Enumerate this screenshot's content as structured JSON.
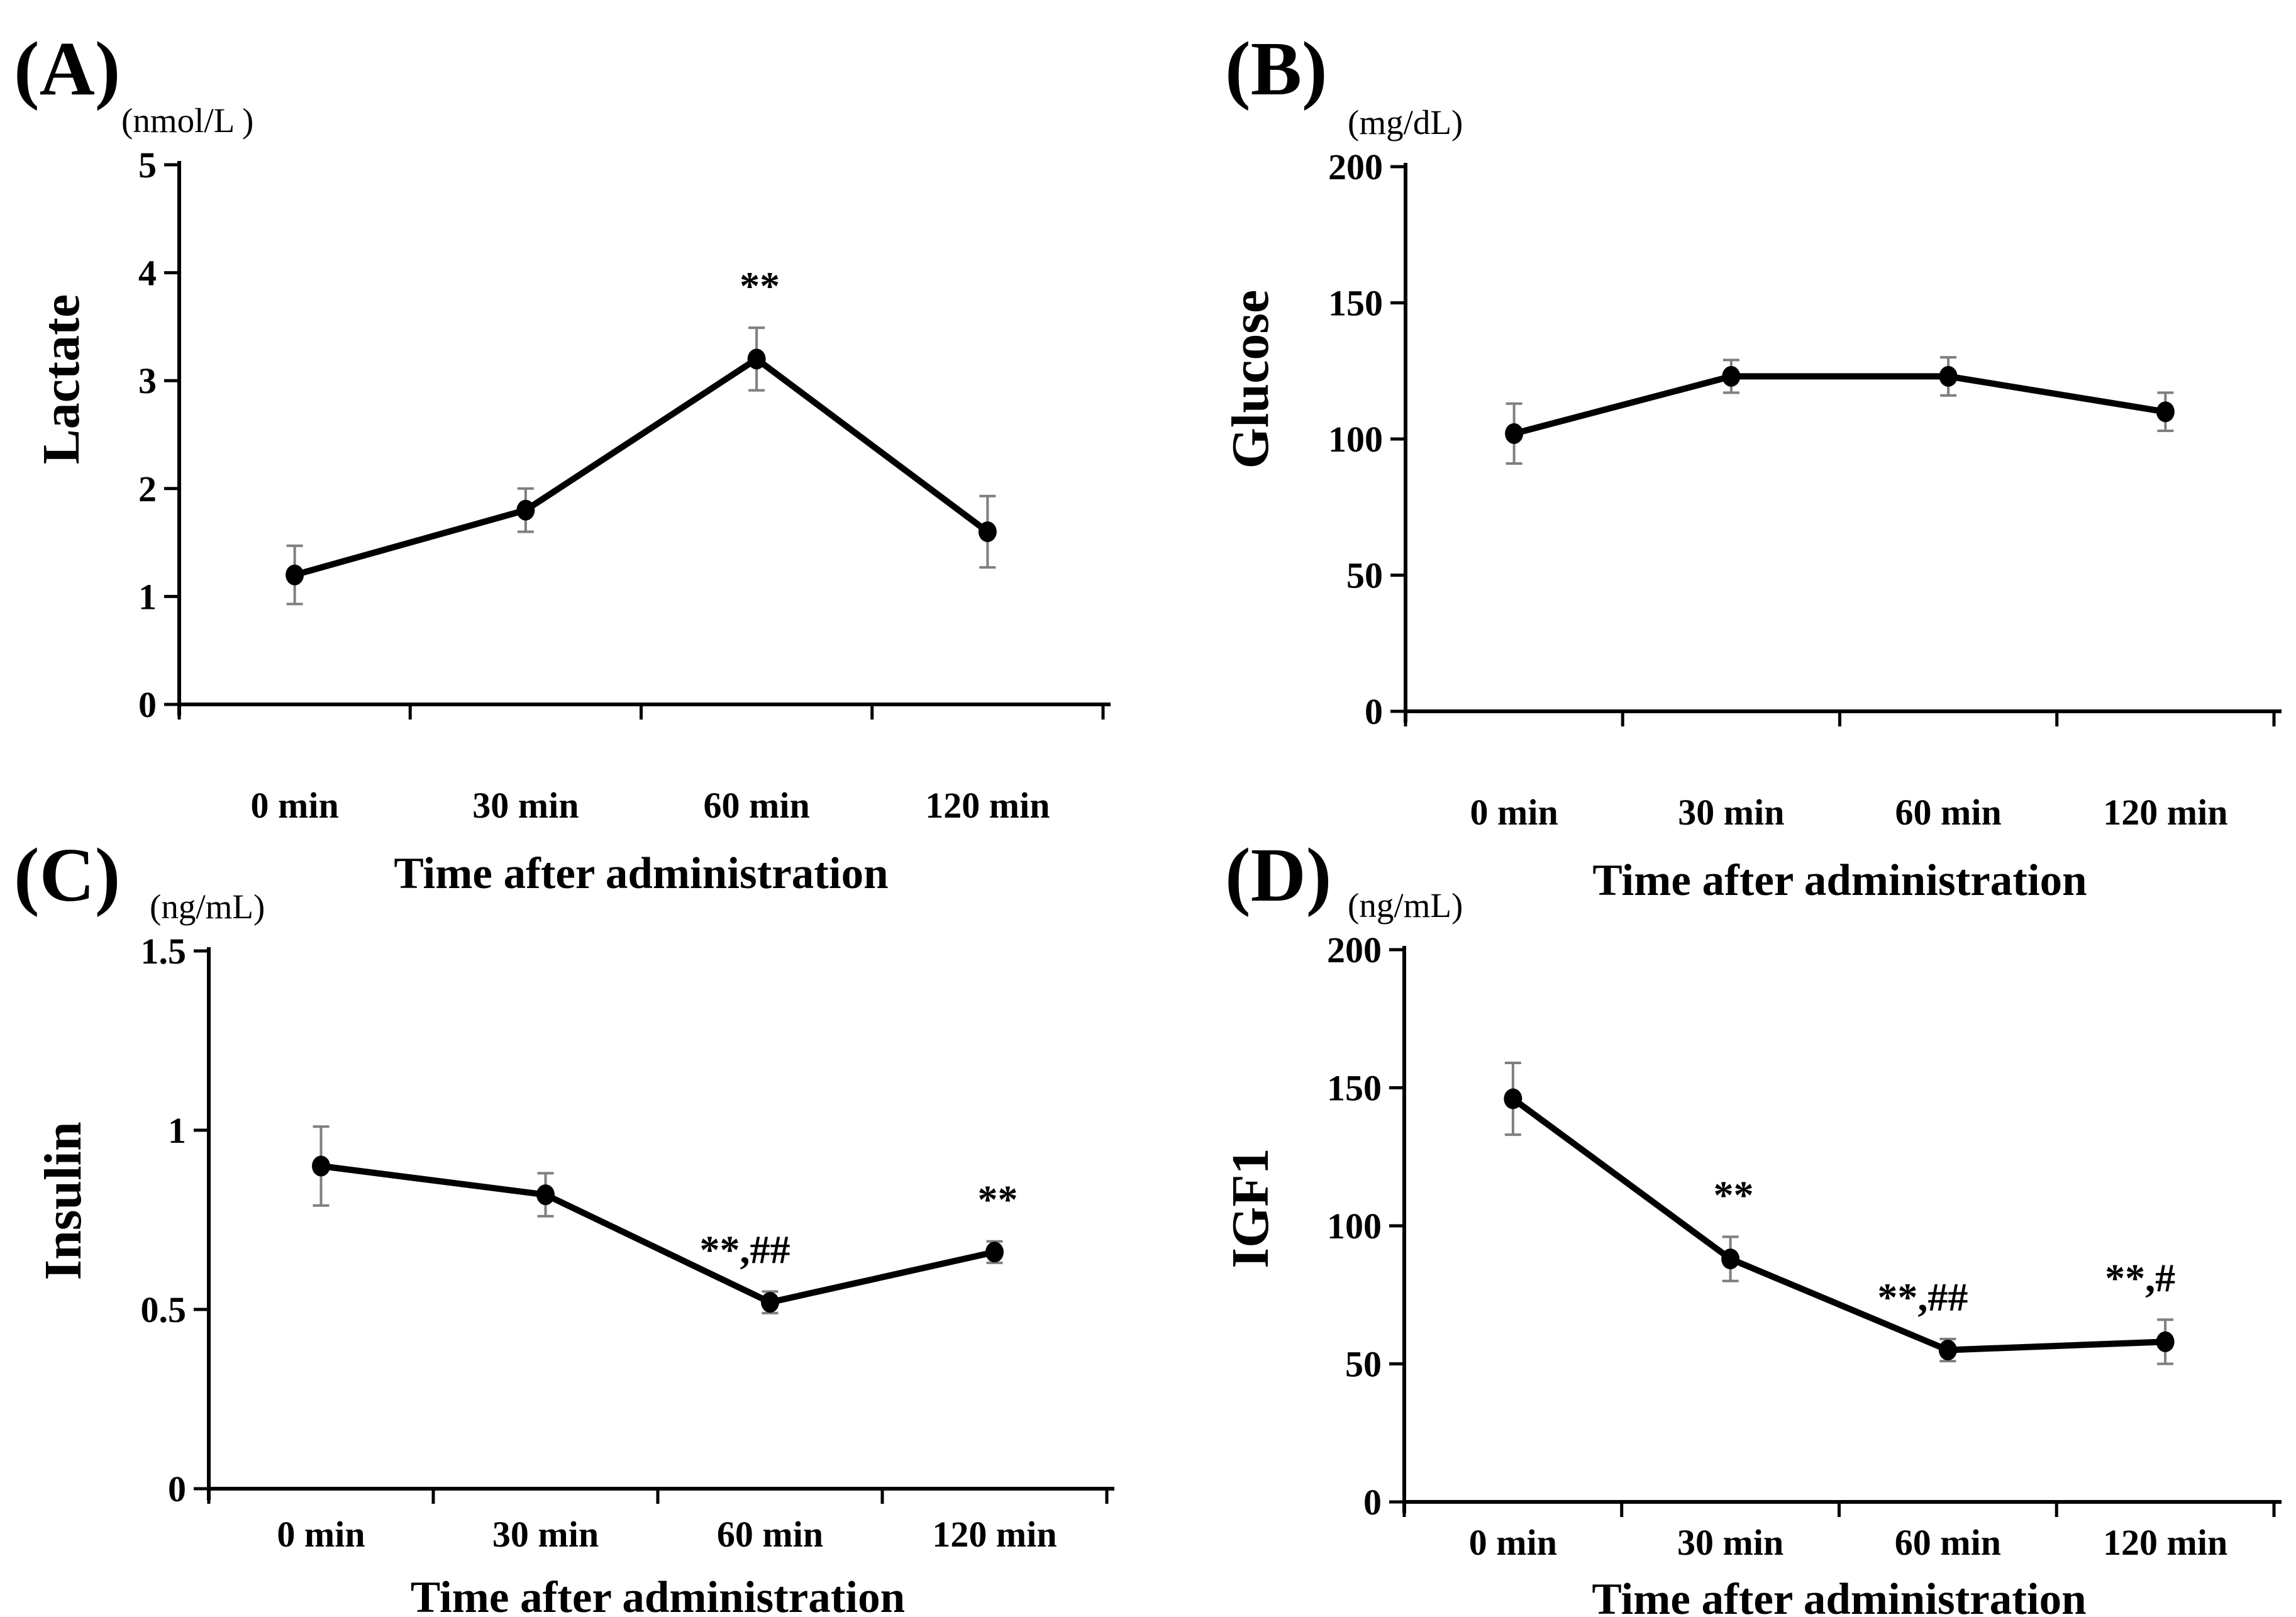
{
  "figure": {
    "background": "#ffffff",
    "text_color": "#000000",
    "line_color": "#000000",
    "marker_color": "#000000",
    "error_bar_color": "#7f7f7f"
  },
  "chart_data": [
    {
      "type": "line",
      "panel_letter": "(A)",
      "ylabel": "Lactate",
      "unit": "(nmol/L )",
      "xlabel": "Time after administration",
      "categories": [
        "0 min",
        "30 min",
        "60 min",
        "120 min"
      ],
      "values": [
        1.2,
        1.8,
        3.2,
        1.6
      ],
      "errors": [
        0.27,
        0.2,
        0.29,
        0.33
      ],
      "annotations": [
        "",
        "",
        "**",
        ""
      ],
      "ylim": [
        0,
        5
      ],
      "ytick_values": [
        0,
        1,
        2,
        3,
        4,
        5
      ],
      "ytick_labels": [
        "0",
        "1",
        "2",
        "3",
        "4",
        "5"
      ],
      "legend": "none",
      "grid": "off"
    },
    {
      "type": "line",
      "panel_letter": "(B)",
      "ylabel": "Glucose",
      "unit": "(mg/dL)",
      "xlabel": "Time after administration",
      "categories": [
        "0 min",
        "30 min",
        "60 min",
        "120 min"
      ],
      "values": [
        102,
        123,
        123,
        110
      ],
      "errors": [
        11,
        6,
        7,
        7
      ],
      "annotations": [
        "",
        "",
        "",
        ""
      ],
      "ylim": [
        0,
        200
      ],
      "ytick_values": [
        0,
        50,
        100,
        150,
        200
      ],
      "ytick_labels": [
        "0",
        "50",
        "100",
        "150",
        "200"
      ],
      "legend": "none",
      "grid": "off"
    },
    {
      "type": "line",
      "panel_letter": "(C)",
      "ylabel": "Insulin",
      "unit": "(ng/mL)",
      "xlabel": "Time after administration",
      "categories": [
        "0 min",
        "30 min",
        "60 min",
        "120 min"
      ],
      "values": [
        0.9,
        0.82,
        0.52,
        0.66
      ],
      "errors": [
        0.11,
        0.06,
        0.03,
        0.03
      ],
      "annotations": [
        "",
        "",
        "**,##",
        "**"
      ],
      "ylim": [
        0,
        1.5
      ],
      "ytick_values": [
        0,
        0.5,
        1,
        1.5
      ],
      "ytick_labels": [
        "0",
        "0.5",
        "1",
        "1.5"
      ],
      "legend": "none",
      "grid": "off"
    },
    {
      "type": "line",
      "panel_letter": "(D)",
      "ylabel": "IGF1",
      "unit": "(ng/mL)",
      "xlabel": "Time after administration",
      "categories": [
        "0 min",
        "30 min",
        "60 min",
        "120 min"
      ],
      "values": [
        146,
        88,
        55,
        58
      ],
      "errors": [
        13,
        8,
        4,
        8
      ],
      "annotations": [
        "",
        "**",
        "**,##",
        "**,#"
      ],
      "ylim": [
        0,
        200
      ],
      "ytick_values": [
        0,
        50,
        100,
        150,
        200
      ],
      "ytick_labels": [
        "0",
        "50",
        "100",
        "150",
        "200"
      ],
      "legend": "none",
      "grid": "off"
    }
  ]
}
